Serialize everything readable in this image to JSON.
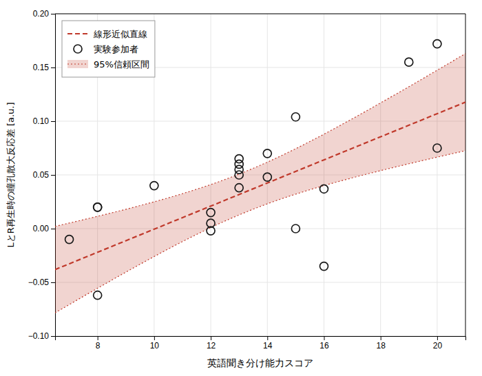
{
  "chart_data": {
    "type": "scatter",
    "xlabel": "英語聞き分け能力スコア",
    "ylabel": "LとR再生時の瞳孔散大反応差 [a.u.]",
    "xlim": [
      6.5,
      21.0
    ],
    "ylim": [
      -0.1,
      0.2
    ],
    "xticks": [
      8,
      10,
      12,
      14,
      16,
      18,
      20
    ],
    "yticks": [
      {
        "value": -0.1,
        "label": "−0.10"
      },
      {
        "value": -0.05,
        "label": "−0.05"
      },
      {
        "value": 0.0,
        "label": "0.00"
      },
      0.05,
      {
        "value": 0.1,
        "label": "0.10"
      },
      0.15,
      {
        "value": 0.2,
        "label": "0.20"
      }
    ],
    "grid": true,
    "legend": "upper-left",
    "series": [
      {
        "name": "線形近似直線",
        "type": "line",
        "line_style": "dashed",
        "color": "#c0392b",
        "x": [
          6.5,
          21.0
        ],
        "values": [
          -0.038125,
          0.11775
        ]
      },
      {
        "name": "実験参加者",
        "type": "scatter",
        "marker": "open-circle",
        "color": "#1a1a1a",
        "x": [
          7,
          8,
          8,
          8,
          10,
          12,
          12,
          12,
          13,
          13,
          13,
          13,
          13,
          14,
          14,
          15,
          15,
          16,
          16,
          19,
          20,
          20
        ],
        "values": [
          -0.01,
          0.02,
          0.02,
          -0.062,
          0.04,
          0.005,
          0.015,
          -0.002,
          0.065,
          0.06,
          0.055,
          0.05,
          0.038,
          0.07,
          0.048,
          0.104,
          0.0,
          0.037,
          -0.035,
          0.155,
          0.172,
          0.075
        ]
      },
      {
        "name": "95%信頼区間",
        "type": "band",
        "line_style": "dotted",
        "color": "#c0392b",
        "x": [
          6.5,
          8,
          9.5,
          11,
          12.5,
          14,
          15.5,
          17,
          18.5,
          20,
          21
        ],
        "lower": [
          -0.078379,
          -0.055478,
          -0.033198,
          -0.012059,
          0.00703,
          0.023106,
          0.036188,
          0.047254,
          0.0572,
          0.066535,
          0.072554
        ],
        "upper": [
          0.002129,
          0.011478,
          0.021448,
          0.032559,
          0.04572,
          0.061894,
          0.081062,
          0.102246,
          0.12455,
          0.147465,
          0.162946
        ]
      }
    ]
  }
}
